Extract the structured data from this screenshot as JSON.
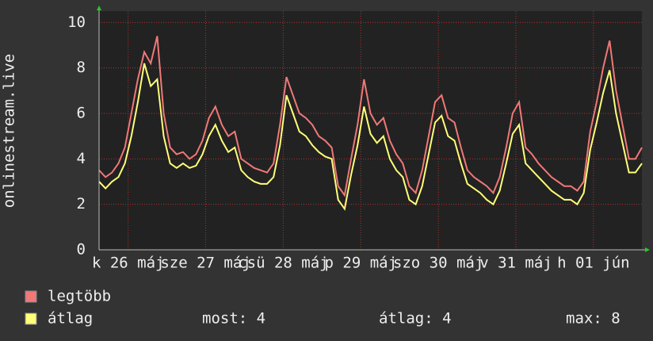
{
  "chart_data": {
    "type": "line",
    "y_label": "onlinestream.live",
    "x": [
      0,
      2,
      4,
      6,
      8,
      10,
      12,
      14,
      16,
      18,
      20,
      22,
      24,
      26,
      28,
      30,
      32,
      34,
      36,
      38,
      40,
      42,
      44,
      46,
      48,
      50,
      52,
      54,
      56,
      58,
      60,
      62,
      64,
      66,
      68,
      70,
      72,
      74,
      76,
      78,
      80,
      82,
      84,
      86,
      88,
      90,
      92,
      94,
      96,
      98,
      100,
      102,
      104,
      106,
      108,
      110,
      112,
      114,
      116,
      118,
      120,
      122,
      124,
      126,
      128,
      130,
      132,
      134,
      136,
      138,
      140,
      142,
      144,
      146,
      148,
      150,
      152,
      154,
      156,
      158,
      160,
      162,
      164,
      166,
      168
    ],
    "xlim": [
      0,
      168
    ],
    "xticks": [
      {
        "value": 9,
        "label": "k 26 máj"
      },
      {
        "value": 33,
        "label": "sze 27 máj"
      },
      {
        "value": 57,
        "label": "csü 28 máj"
      },
      {
        "value": 81,
        "label": "p 29 máj"
      },
      {
        "value": 105,
        "label": "szo 30 máj"
      },
      {
        "value": 129,
        "label": "v 31 máj"
      },
      {
        "value": 153,
        "label": "h 01 jún"
      }
    ],
    "ylim": [
      0,
      10.5
    ],
    "yticks": [
      0,
      2,
      4,
      6,
      8,
      10
    ],
    "grid": true,
    "series": [
      {
        "name": "legtöbb",
        "color": "#f07878",
        "values": [
          3.5,
          3.2,
          3.4,
          3.8,
          4.5,
          6,
          7.5,
          8.7,
          8.2,
          9.4,
          6,
          4.5,
          4.2,
          4.3,
          4,
          4.2,
          4.8,
          5.8,
          6.3,
          5.5,
          5,
          5.2,
          4,
          3.8,
          3.6,
          3.5,
          3.4,
          3.8,
          5.5,
          7.6,
          6.8,
          6,
          5.8,
          5.5,
          5,
          4.8,
          4.5,
          2.8,
          2.4,
          4,
          5.5,
          7.5,
          6,
          5.5,
          5.8,
          4.8,
          4.2,
          3.8,
          2.8,
          2.5,
          3.5,
          5,
          6.5,
          6.8,
          5.8,
          5.6,
          4.5,
          3.5,
          3.2,
          3,
          2.8,
          2.5,
          3.2,
          4.5,
          6,
          6.5,
          4.5,
          4.2,
          3.8,
          3.5,
          3.2,
          3,
          2.8,
          2.8,
          2.6,
          3,
          5.2,
          6.5,
          8,
          9.2,
          7,
          5.5,
          4,
          4,
          4.5
        ]
      },
      {
        "name": "átlag",
        "color": "#ffff78",
        "values": [
          3,
          2.7,
          3,
          3.2,
          3.8,
          5,
          6.5,
          8.2,
          7.2,
          7.5,
          5,
          3.8,
          3.6,
          3.8,
          3.6,
          3.7,
          4.2,
          5,
          5.5,
          4.8,
          4.3,
          4.5,
          3.5,
          3.2,
          3,
          2.9,
          2.9,
          3.2,
          4.6,
          6.8,
          6,
          5.2,
          5,
          4.6,
          4.3,
          4.1,
          4,
          2.2,
          1.8,
          3.3,
          4.6,
          6.3,
          5.1,
          4.7,
          5,
          4,
          3.5,
          3.2,
          2.2,
          2,
          2.8,
          4.2,
          5.6,
          5.9,
          5,
          4.8,
          3.8,
          2.9,
          2.7,
          2.5,
          2.2,
          2,
          2.6,
          3.8,
          5.1,
          5.5,
          3.8,
          3.5,
          3.2,
          2.9,
          2.6,
          2.4,
          2.2,
          2.2,
          2,
          2.5,
          4.4,
          5.6,
          6.9,
          7.9,
          6,
          4.7,
          3.4,
          3.4,
          3.8
        ]
      }
    ],
    "stats": [
      "most: 4",
      "átlag: 4",
      "max: 8"
    ]
  }
}
